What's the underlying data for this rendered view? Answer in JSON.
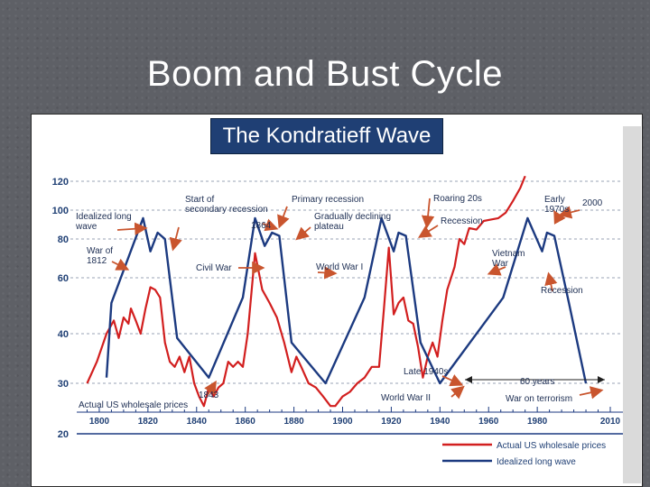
{
  "slide": {
    "title": "Boom and Bust Cycle"
  },
  "chart_data": {
    "type": "line",
    "title": "The Kondratieff Wave",
    "xlabel": "",
    "ylabel": "",
    "log_scale_y": true,
    "xlim": [
      1790,
      2010
    ],
    "ylim": [
      20,
      120
    ],
    "x_ticks": [
      1800,
      1820,
      1840,
      1860,
      1880,
      1900,
      1920,
      1940,
      1960,
      1980,
      2010
    ],
    "y_ticks": [
      20,
      30,
      40,
      60,
      80,
      100,
      120
    ],
    "legend": {
      "placement": "bottom-right"
    },
    "colors": {
      "actual": "#d21f1f",
      "idealized": "#1c3a80",
      "heading_bg": "#1f3f74"
    },
    "series": [
      {
        "name": "Actual US wholesale prices",
        "color": "#d21f1f",
        "points": [
          [
            1795,
            30
          ],
          [
            1799,
            34
          ],
          [
            1803,
            40
          ],
          [
            1806,
            44
          ],
          [
            1808,
            39
          ],
          [
            1810,
            45
          ],
          [
            1812,
            43
          ],
          [
            1813,
            48
          ],
          [
            1815,
            44
          ],
          [
            1817,
            40
          ],
          [
            1819,
            48
          ],
          [
            1821,
            56
          ],
          [
            1823,
            55
          ],
          [
            1825,
            52
          ],
          [
            1827,
            38
          ],
          [
            1829,
            34
          ],
          [
            1831,
            33
          ],
          [
            1833,
            35
          ],
          [
            1835,
            32
          ],
          [
            1837,
            35
          ],
          [
            1839,
            30
          ],
          [
            1841,
            27
          ],
          [
            1843,
            25
          ],
          [
            1845,
            29
          ],
          [
            1847,
            27
          ],
          [
            1849,
            29
          ],
          [
            1851,
            30
          ],
          [
            1853,
            34
          ],
          [
            1855,
            33
          ],
          [
            1857,
            34
          ],
          [
            1859,
            33
          ],
          [
            1861,
            40
          ],
          [
            1864,
            72
          ],
          [
            1867,
            55
          ],
          [
            1870,
            50
          ],
          [
            1873,
            45
          ],
          [
            1876,
            38
          ],
          [
            1879,
            32
          ],
          [
            1881,
            35
          ],
          [
            1883,
            33
          ],
          [
            1886,
            30
          ],
          [
            1889,
            29
          ],
          [
            1892,
            27
          ],
          [
            1895,
            25
          ],
          [
            1897,
            25
          ],
          [
            1900,
            27
          ],
          [
            1903,
            28
          ],
          [
            1906,
            30
          ],
          [
            1909,
            31
          ],
          [
            1912,
            33
          ],
          [
            1915,
            33
          ],
          [
            1917,
            48
          ],
          [
            1919,
            75
          ],
          [
            1921,
            46
          ],
          [
            1923,
            50
          ],
          [
            1925,
            52
          ],
          [
            1927,
            44
          ],
          [
            1929,
            43
          ],
          [
            1931,
            37
          ],
          [
            1933,
            31
          ],
          [
            1935,
            35
          ],
          [
            1937,
            38
          ],
          [
            1939,
            35
          ],
          [
            1941,
            44
          ],
          [
            1943,
            55
          ],
          [
            1946,
            65
          ],
          [
            1948,
            80
          ],
          [
            1950,
            77
          ],
          [
            1952,
            87
          ],
          [
            1955,
            86
          ],
          [
            1958,
            92
          ],
          [
            1961,
            93
          ],
          [
            1964,
            94
          ],
          [
            1967,
            98
          ],
          [
            1970,
            106
          ],
          [
            1973,
            115
          ],
          [
            1975,
            124
          ]
        ]
      },
      {
        "name": "Idealized long wave",
        "color": "#1c3a80",
        "points": [
          [
            1803,
            31
          ],
          [
            1805,
            50
          ],
          [
            1818,
            94
          ],
          [
            1821,
            73
          ],
          [
            1824,
            84
          ],
          [
            1827,
            80
          ],
          [
            1832,
            39
          ],
          [
            1845,
            31
          ],
          [
            1859,
            52
          ],
          [
            1864,
            94
          ],
          [
            1868,
            76
          ],
          [
            1871,
            84
          ],
          [
            1874,
            82
          ],
          [
            1879,
            38
          ],
          [
            1893,
            30
          ],
          [
            1909,
            52
          ],
          [
            1916,
            94
          ],
          [
            1921,
            73
          ],
          [
            1923,
            84
          ],
          [
            1926,
            82
          ],
          [
            1932,
            38
          ],
          [
            1940,
            30
          ],
          [
            1966,
            52
          ],
          [
            1976,
            94
          ],
          [
            1982,
            73
          ],
          [
            1984,
            84
          ],
          [
            1987,
            82
          ],
          [
            1993,
            50
          ],
          [
            2000,
            30
          ]
        ]
      }
    ],
    "annotations": [
      "Idealized long wave",
      "War of 1812",
      "Start of secondary recession",
      "1864",
      "Civil War",
      "Primary recession",
      "Gradually declining plateau",
      "World War I",
      "Roaring 20s",
      "Recession",
      "Early 1970s",
      "2000",
      "Vietnam War",
      "Recession",
      "Late 1940s",
      "60 years",
      "World War II",
      "War on terrorism",
      "1843",
      "Actual US wholesale prices"
    ]
  }
}
